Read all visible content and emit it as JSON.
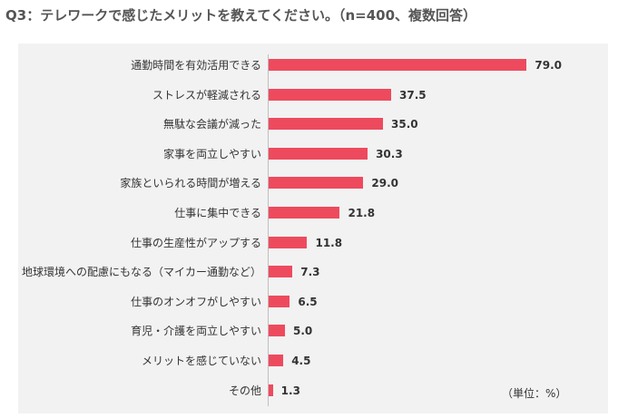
{
  "title": "Q3：テレワークで感じたメリットを教えてください。（n=400、複数回答）",
  "unit_note": "（単位：%）",
  "colors": {
    "bar": "#ee4a5e",
    "panel": "#f2f2f2"
  },
  "chart_data": {
    "type": "bar",
    "orientation": "horizontal",
    "title": "Q3：テレワークで感じたメリットを教えてください。（n=400、複数回答）",
    "unit": "（単位：%）",
    "xlim": [
      0,
      80
    ],
    "grid": false,
    "categories": [
      "通勤時間を有効活用できる",
      "ストレスが軽減される",
      "無駄な会議が減った",
      "家事を両立しやすい",
      "家族といられる時間が増える",
      "仕事に集中できる",
      "仕事の生産性がアップする",
      "地球環境への配慮にもなる（マイカー通勤など）",
      "仕事のオンオフがしやすい",
      "育児・介護を両立しやすい",
      "メリットを感じていない",
      "その他"
    ],
    "values": [
      79.0,
      37.5,
      35.0,
      30.3,
      29.0,
      21.8,
      11.8,
      7.3,
      6.5,
      5.0,
      4.5,
      1.3
    ],
    "value_labels": [
      "79.0",
      "37.5",
      "35.0",
      "30.3",
      "29.0",
      "21.8",
      "11.8",
      "7.3",
      "6.5",
      "5.0",
      "4.5",
      "1.3"
    ]
  }
}
